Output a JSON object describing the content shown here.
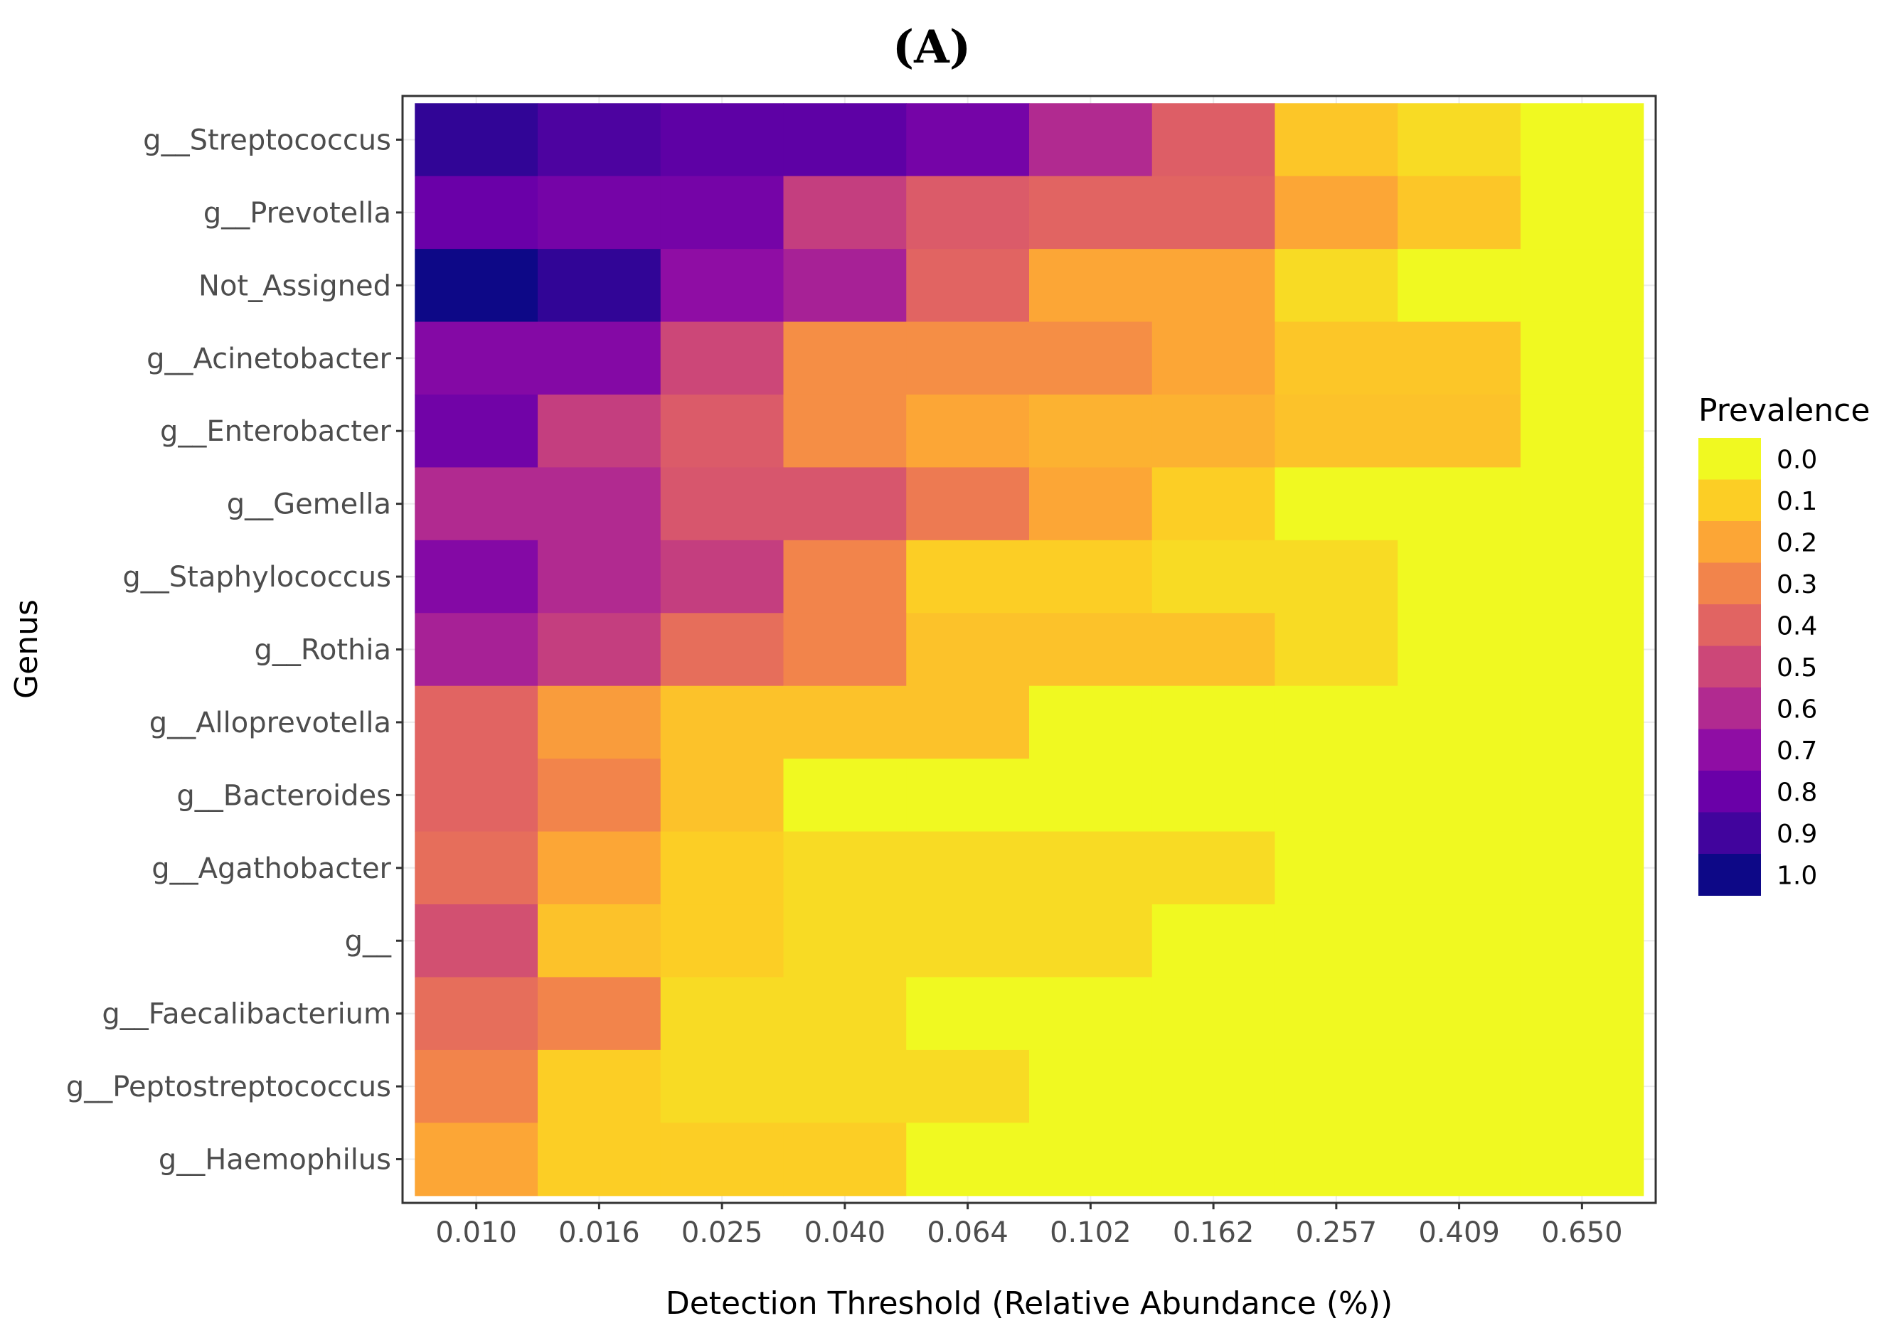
{
  "panel_label": "(A)",
  "chart_data": {
    "type": "heatmap",
    "title": "",
    "xlabel": "Detection Threshold (Relative Abundance (%))",
    "ylabel": "Genus",
    "x_categories": [
      "0.010",
      "0.016",
      "0.025",
      "0.040",
      "0.064",
      "0.102",
      "0.162",
      "0.257",
      "0.409",
      "0.650"
    ],
    "y_categories": [
      "g__Streptococcus",
      "g__Prevotella",
      "Not_Assigned",
      "g__Acinetobacter",
      "g__Enterobacter",
      "g__Gemella",
      "g__Staphylococcus",
      "g__Rothia",
      "g__Alloprevotella",
      "g__Bacteroides",
      "g__Agathobacter",
      "g__",
      "g__Faecalibacterium",
      "g__Peptostreptococcus",
      "g__Haemophilus"
    ],
    "values": [
      [
        0.93,
        0.87,
        0.83,
        0.83,
        0.77,
        0.6,
        0.42,
        0.12,
        0.07,
        0.0
      ],
      [
        0.8,
        0.77,
        0.77,
        0.53,
        0.43,
        0.4,
        0.4,
        0.2,
        0.12,
        0.0
      ],
      [
        1.0,
        0.93,
        0.7,
        0.63,
        0.4,
        0.2,
        0.2,
        0.07,
        0.0,
        0.0
      ],
      [
        0.73,
        0.73,
        0.5,
        0.27,
        0.27,
        0.27,
        0.2,
        0.12,
        0.12,
        0.0
      ],
      [
        0.78,
        0.53,
        0.43,
        0.27,
        0.2,
        0.17,
        0.17,
        0.13,
        0.13,
        0.0
      ],
      [
        0.6,
        0.6,
        0.45,
        0.45,
        0.33,
        0.2,
        0.1,
        0.0,
        0.0,
        0.0
      ],
      [
        0.73,
        0.6,
        0.53,
        0.3,
        0.1,
        0.1,
        0.07,
        0.07,
        0.0,
        0.0
      ],
      [
        0.63,
        0.53,
        0.37,
        0.3,
        0.13,
        0.13,
        0.13,
        0.07,
        0.0,
        0.0
      ],
      [
        0.4,
        0.23,
        0.13,
        0.13,
        0.13,
        0.0,
        0.0,
        0.0,
        0.0,
        0.0
      ],
      [
        0.4,
        0.3,
        0.13,
        0.0,
        0.0,
        0.0,
        0.0,
        0.0,
        0.0,
        0.0
      ],
      [
        0.37,
        0.2,
        0.1,
        0.07,
        0.07,
        0.07,
        0.07,
        0.0,
        0.0,
        0.0
      ],
      [
        0.47,
        0.13,
        0.1,
        0.07,
        0.07,
        0.07,
        0.0,
        0.0,
        0.0,
        0.0
      ],
      [
        0.37,
        0.3,
        0.07,
        0.07,
        0.0,
        0.0,
        0.0,
        0.0,
        0.0,
        0.0
      ],
      [
        0.3,
        0.1,
        0.07,
        0.07,
        0.07,
        0.0,
        0.0,
        0.0,
        0.0,
        0.0
      ],
      [
        0.2,
        0.1,
        0.1,
        0.1,
        0.0,
        0.0,
        0.0,
        0.0,
        0.0,
        0.0
      ]
    ],
    "legend": {
      "title": "Prevalence",
      "labels": [
        "0.0",
        "0.1",
        "0.2",
        "0.3",
        "0.4",
        "0.5",
        "0.6",
        "0.7",
        "0.8",
        "0.9",
        "1.0"
      ],
      "colors": [
        "#f0f921",
        "#fcce25",
        "#fca636",
        "#f2844b",
        "#e16462",
        "#cc4778",
        "#b12a90",
        "#8f0da4",
        "#6a00a8",
        "#41049d",
        "#0d0887"
      ],
      "placement": "right"
    },
    "colormap": "plasma (reversed: 0 = yellow, 1 = dark blue)",
    "value_range": [
      0,
      1
    ],
    "grid": true,
    "panel_background": "#ffffff",
    "grid_color": "#ebebeb"
  }
}
